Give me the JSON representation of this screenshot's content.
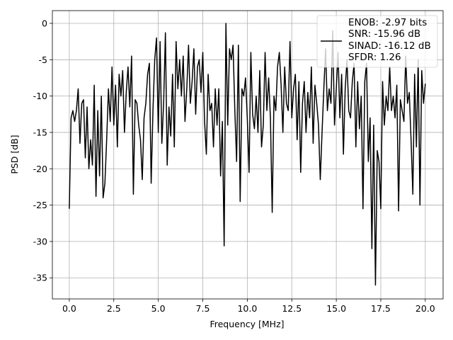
{
  "chart_data": {
    "type": "line",
    "xlabel": "Frequency [MHz]",
    "ylabel": "PSD [dB]",
    "x": [
      0.0,
      0.1,
      0.2,
      0.3,
      0.4,
      0.5,
      0.6,
      0.7,
      0.8,
      0.9,
      1.0,
      1.1,
      1.2,
      1.3,
      1.4,
      1.5,
      1.6,
      1.7,
      1.8,
      1.9,
      2.0,
      2.1,
      2.2,
      2.3,
      2.4,
      2.5,
      2.6,
      2.7,
      2.8,
      2.9,
      3.0,
      3.1,
      3.2,
      3.3,
      3.4,
      3.5,
      3.6,
      3.7,
      3.8,
      3.9,
      4.0,
      4.1,
      4.2,
      4.3,
      4.4,
      4.5,
      4.6,
      4.7,
      4.8,
      4.9,
      5.0,
      5.1,
      5.2,
      5.3,
      5.4,
      5.5,
      5.6,
      5.7,
      5.8,
      5.9,
      6.0,
      6.1,
      6.2,
      6.3,
      6.4,
      6.5,
      6.6,
      6.7,
      6.8,
      6.9,
      7.0,
      7.1,
      7.2,
      7.3,
      7.4,
      7.5,
      7.6,
      7.7,
      7.8,
      7.9,
      8.0,
      8.1,
      8.2,
      8.3,
      8.4,
      8.5,
      8.6,
      8.7,
      8.8,
      8.9,
      9.0,
      9.1,
      9.2,
      9.3,
      9.4,
      9.5,
      9.6,
      9.7,
      9.8,
      9.9,
      10.0,
      10.1,
      10.2,
      10.3,
      10.4,
      10.5,
      10.6,
      10.7,
      10.8,
      10.9,
      11.0,
      11.1,
      11.2,
      11.3,
      11.4,
      11.5,
      11.6,
      11.7,
      11.8,
      11.9,
      12.0,
      12.1,
      12.2,
      12.3,
      12.4,
      12.5,
      12.6,
      12.7,
      12.8,
      12.9,
      13.0,
      13.1,
      13.2,
      13.3,
      13.4,
      13.5,
      13.6,
      13.7,
      13.8,
      13.9,
      14.0,
      14.1,
      14.2,
      14.3,
      14.4,
      14.5,
      14.6,
      14.7,
      14.8,
      14.9,
      15.0,
      15.1,
      15.2,
      15.3,
      15.4,
      15.5,
      15.6,
      15.7,
      15.8,
      15.9,
      16.0,
      16.1,
      16.2,
      16.3,
      16.4,
      16.5,
      16.6,
      16.7,
      16.8,
      16.9,
      17.0,
      17.1,
      17.2,
      17.3,
      17.4,
      17.5,
      17.6,
      17.7,
      17.8,
      17.9,
      18.0,
      18.1,
      18.2,
      18.3,
      18.4,
      18.5,
      18.6,
      18.7,
      18.8,
      18.9,
      19.0,
      19.1,
      19.2,
      19.3,
      19.4,
      19.5,
      19.6,
      19.7,
      19.8,
      19.9,
      20.0
    ],
    "series": [
      {
        "name": "ENOB: -2.97 bits\nSNR: -15.96 dB\nSINAD: -16.12 dB\nSFDR: 1.26",
        "color": "#000000",
        "values": [
          -25.5,
          -13,
          -12,
          -13.5,
          -12,
          -9,
          -16.5,
          -11,
          -10.5,
          -18.5,
          -11.5,
          -20,
          -16,
          -19.5,
          -8.5,
          -23.8,
          -12,
          -21,
          -10,
          -24,
          -22,
          -16,
          -9,
          -13.5,
          -6,
          -14,
          -8.5,
          -17,
          -7,
          -10,
          -6.5,
          -15,
          -9.5,
          -6,
          -11.5,
          -4.5,
          -23.5,
          -10.5,
          -11,
          -14,
          -16,
          -21.5,
          -13,
          -11,
          -7,
          -5.5,
          -22,
          -12,
          -5,
          -2,
          -15,
          -2.5,
          -16.5,
          -11,
          -1.3,
          -19.5,
          -11.5,
          -15.5,
          -7,
          -17,
          -2.5,
          -9,
          -5,
          -10,
          -4.5,
          -13.5,
          -9,
          -3,
          -11,
          -8,
          -3.5,
          -12.5,
          -6,
          -5,
          -9.5,
          -4,
          -13.5,
          -18,
          -7,
          -12,
          -11,
          -17,
          -9,
          -14,
          -9,
          -21,
          -13.5,
          -30.6,
          0,
          -14,
          -3.5,
          -5,
          -3,
          -12,
          -19,
          -3,
          -24.5,
          -9,
          -10,
          -7.5,
          -13,
          -20.5,
          -4,
          -12.5,
          -14.5,
          -10,
          -15,
          -6.5,
          -17,
          -14,
          -4,
          -12,
          -7.5,
          -13,
          -26,
          -10,
          -12,
          -6,
          -4,
          -8.5,
          -15,
          -6,
          -11,
          -12,
          -2.5,
          -13,
          -9,
          -7,
          -16,
          -8,
          -20.5,
          -11,
          -8,
          -15,
          -9.5,
          -13,
          -6,
          -16.5,
          -8.5,
          -11,
          -14,
          -21.5,
          -15,
          -9,
          -3.5,
          -12,
          -9,
          -11,
          -1,
          -14,
          -9,
          -4,
          -13,
          -7,
          -18,
          -9,
          -5,
          -12,
          -13,
          -8,
          -5.5,
          -17,
          -8,
          -14.5,
          -10,
          -25.5,
          -8,
          -5.5,
          -19,
          -13,
          -31,
          -14,
          -36,
          -17.5,
          -19,
          -25.5,
          -8,
          -14,
          -10,
          -12,
          -6,
          -12,
          -10,
          -13,
          -8.5,
          -25.8,
          -10.5,
          -12,
          -13.5,
          -4.5,
          -11,
          -9.5,
          -16,
          -23.5,
          -7,
          -17,
          -5,
          -25,
          -6.5,
          -11,
          -8.3
        ]
      }
    ],
    "xlim": [
      -0.95,
      21.0
    ],
    "ylim": [
      -37.9,
      1.75
    ],
    "xticks": [
      {
        "value": 0,
        "label": "0.0"
      },
      {
        "value": 2.5,
        "label": "2.5"
      },
      {
        "value": 5,
        "label": "5.0"
      },
      {
        "value": 7.5,
        "label": "7.5"
      },
      {
        "value": 10,
        "label": "10.0"
      },
      {
        "value": 12.5,
        "label": "12.5"
      },
      {
        "value": 15,
        "label": "15.0"
      },
      {
        "value": 17.5,
        "label": "17.5"
      },
      {
        "value": 20,
        "label": "20.0"
      }
    ],
    "yticks": [
      0,
      -5,
      -10,
      -15,
      -20,
      -25,
      -30,
      -35
    ],
    "grid": true,
    "legend": "upper right"
  }
}
